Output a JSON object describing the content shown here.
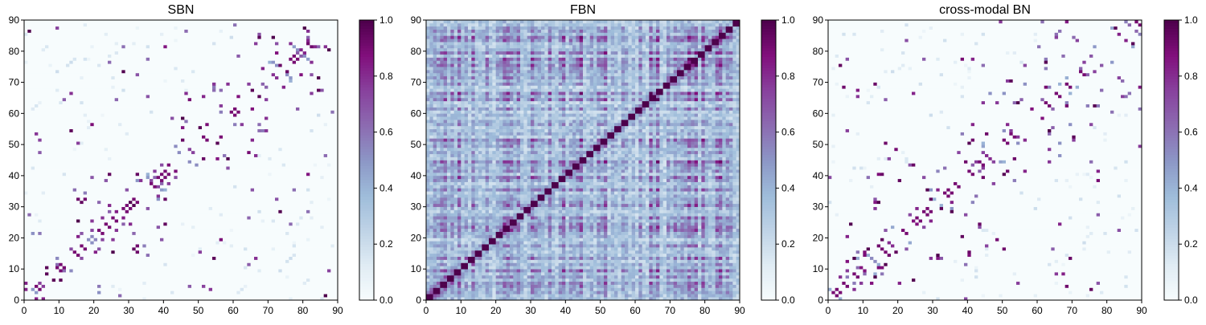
{
  "panels": [
    {
      "title": "SBN",
      "style": "sparse",
      "seed": 11
    },
    {
      "title": "FBN",
      "style": "dense",
      "seed": 23
    },
    {
      "title": "cross-modal BN",
      "style": "sparse",
      "seed": 37
    }
  ],
  "chart_data": [
    {
      "type": "heatmap",
      "title": "SBN",
      "xlim": [
        0,
        90
      ],
      "ylim": [
        0,
        90
      ],
      "xticks": [
        0,
        10,
        20,
        30,
        40,
        50,
        60,
        70,
        80,
        90
      ],
      "yticks": [
        0,
        10,
        20,
        30,
        40,
        50,
        60,
        70,
        80,
        90
      ],
      "colorbar": {
        "range": [
          0.0,
          1.0
        ],
        "ticks": [
          "0.0",
          "0.2",
          "0.4",
          "0.6",
          "0.8",
          "1.0"
        ]
      },
      "matrix_size": 90,
      "note_values": "sparse symmetric connectivity matrix, values in [0,1], mostly near 0 with strong off-diagonal bands near the diagonal"
    },
    {
      "type": "heatmap",
      "title": "FBN",
      "xlim": [
        0,
        90
      ],
      "ylim": [
        0,
        90
      ],
      "xticks": [
        0,
        10,
        20,
        30,
        40,
        50,
        60,
        70,
        80,
        90
      ],
      "yticks": [
        0,
        10,
        20,
        30,
        40,
        50,
        60,
        70,
        80,
        90
      ],
      "colorbar": {
        "range": [
          0.0,
          1.0
        ],
        "ticks": [
          "0.0",
          "0.2",
          "0.4",
          "0.6",
          "0.8",
          "1.0"
        ]
      },
      "matrix_size": 90
    },
    {
      "type": "heatmap",
      "title": "cross-modal BN",
      "xlim": [
        0,
        90
      ],
      "ylim": [
        0,
        90
      ],
      "xticks": [
        0,
        10,
        20,
        30,
        40,
        50,
        60,
        70,
        80,
        90
      ],
      "yticks": [
        0,
        10,
        20,
        30,
        40,
        50,
        60,
        70,
        80,
        90
      ],
      "colorbar": {
        "range": [
          0.0,
          1.0
        ],
        "ticks": [
          "0.0",
          "0.2",
          "0.4",
          "0.6",
          "0.8",
          "1.0"
        ]
      },
      "matrix_size": 90
    }
  ],
  "colormap": {
    "name": "BuPu",
    "stops": [
      "#f7fcfd",
      "#e0ecf4",
      "#bfd3e6",
      "#9ebcda",
      "#8c96c6",
      "#8c6bb1",
      "#88419d",
      "#810f7c",
      "#4d004b"
    ]
  }
}
